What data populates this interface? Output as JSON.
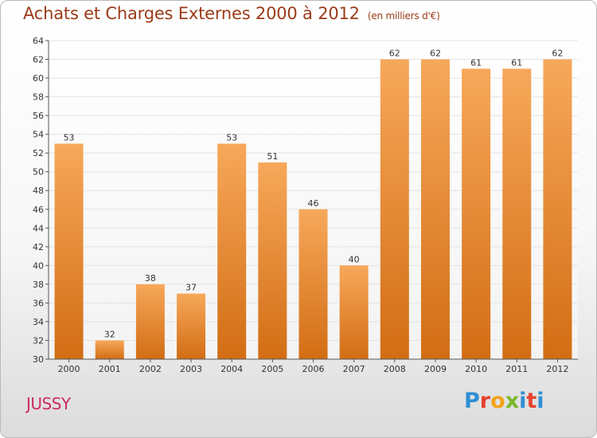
{
  "title": "Achats et Charges Externes 2000 à 2012",
  "unit_note": "(en milliers d'€)",
  "town": "JUSSY",
  "logo_text": "Proxiti",
  "colors": {
    "bar_top": "#f7a85a",
    "bar_bottom": "#d26d14",
    "title": "#9a3b17",
    "town": "#cc2c5c",
    "grid": "#e3e3e3",
    "axis": "#555555",
    "logo_letters": [
      "#2f8fd5",
      "#e6412d",
      "#f2a31a",
      "#7ab82a",
      "#2f8fd5",
      "#e6412d",
      "#2f8fd5"
    ]
  },
  "chart_data": {
    "type": "bar",
    "title": "Achats et Charges Externes 2000 à 2012",
    "subtitle": "(en milliers d'€)",
    "xlabel": "",
    "ylabel": "",
    "categories": [
      "2000",
      "2001",
      "2002",
      "2003",
      "2004",
      "2005",
      "2006",
      "2007",
      "2008",
      "2009",
      "2010",
      "2011",
      "2012"
    ],
    "values": [
      53,
      32,
      38,
      37,
      53,
      51,
      46,
      40,
      62,
      62,
      61,
      61,
      62
    ],
    "ylim": [
      30,
      64
    ],
    "yticks": [
      30,
      32,
      34,
      36,
      38,
      40,
      42,
      44,
      46,
      48,
      50,
      52,
      54,
      56,
      58,
      60,
      62,
      64
    ],
    "grid": true,
    "legend": "none"
  }
}
